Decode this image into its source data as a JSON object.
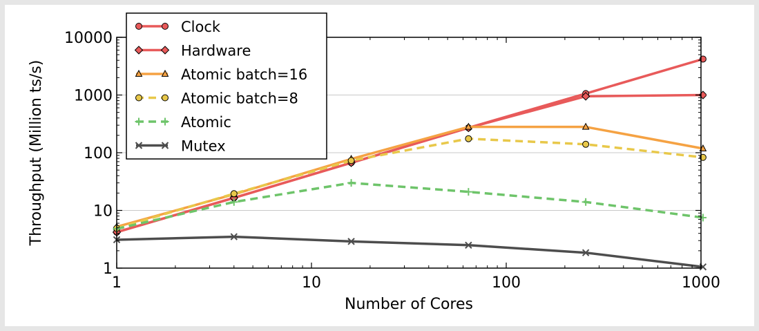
{
  "chart_data": {
    "type": "line",
    "xlabel": "Number of Cores",
    "ylabel": "Throughput (Million ts/s)",
    "xscale": "log",
    "yscale": "log",
    "xlim": [
      1,
      1000
    ],
    "ylim": [
      1,
      10000
    ],
    "xticks": [
      1,
      10,
      100,
      1000
    ],
    "xtick_labels": [
      "1",
      "10",
      "100",
      "1000"
    ],
    "yticks": [
      1,
      10,
      100,
      1000,
      10000
    ],
    "ytick_labels": [
      "1",
      "10",
      "100",
      "1000",
      "10000"
    ],
    "grid": "horizontal major",
    "legend_position": "top-left",
    "x": [
      1,
      4,
      16,
      64,
      256,
      1024
    ],
    "series": [
      {
        "name": "Clock",
        "values": [
          4.2,
          16.5,
          67,
          270,
          1060,
          4200
        ],
        "color": "#e85a5a",
        "dash": "solid",
        "marker": "circle"
      },
      {
        "name": "Hardware",
        "values": [
          4.2,
          16.5,
          67,
          270,
          950,
          1000
        ],
        "color": "#e85a5a",
        "dash": "solid",
        "marker": "diamond"
      },
      {
        "name": "Atomic batch=16",
        "values": [
          5.2,
          19,
          78,
          280,
          280,
          118
        ],
        "color": "#f5a243",
        "dash": "solid",
        "marker": "triangle"
      },
      {
        "name": "Atomic batch=8",
        "values": [
          4.9,
          19.5,
          73,
          175,
          140,
          83
        ],
        "color": "#e8c84a",
        "dash": "dashed",
        "marker": "circle"
      },
      {
        "name": "Atomic",
        "values": [
          4.8,
          14,
          30,
          21,
          14,
          7.5
        ],
        "color": "#6ec46a",
        "dash": "dashed",
        "marker": "plus"
      },
      {
        "name": "Mutex",
        "values": [
          3.1,
          3.5,
          2.9,
          2.5,
          1.85,
          1.05
        ],
        "color": "#4d4d4d",
        "dash": "solid",
        "marker": "x"
      }
    ]
  }
}
